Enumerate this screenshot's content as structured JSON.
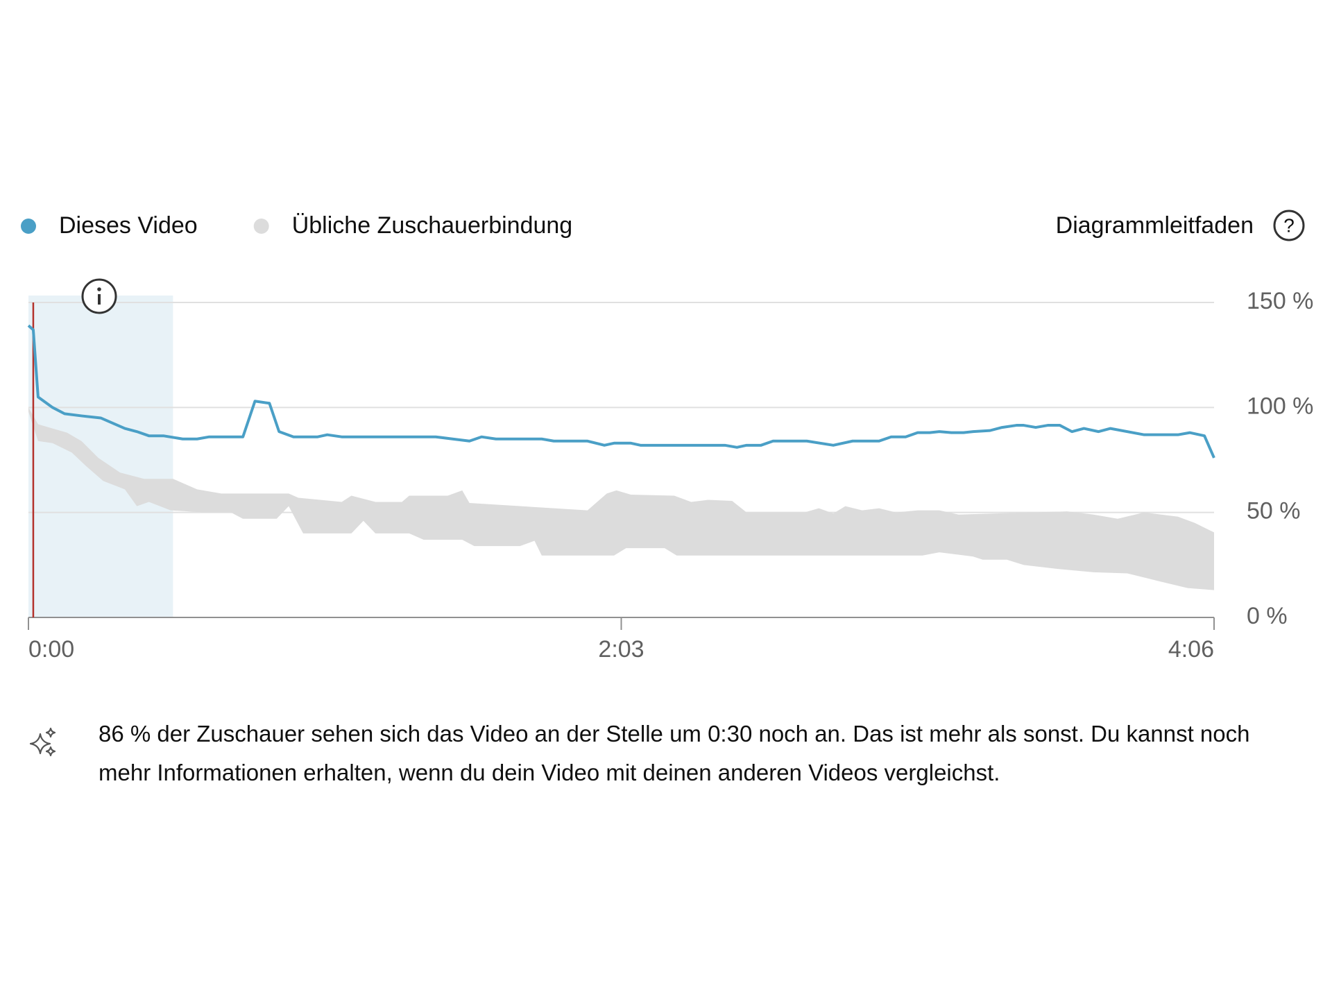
{
  "chart_data": {
    "type": "line",
    "xlim": [
      0,
      246
    ],
    "xticks": [
      {
        "value": 0,
        "label": "0:00"
      },
      {
        "value": 123,
        "label": "2:03"
      },
      {
        "value": 246,
        "label": "4:06"
      }
    ],
    "ylim": [
      0,
      150
    ],
    "yticks": [
      {
        "value": 0,
        "label": "0 %"
      },
      {
        "value": 50,
        "label": "50 %"
      },
      {
        "value": 100,
        "label": "100 %"
      },
      {
        "value": 150,
        "label": "150 %"
      }
    ],
    "grid": true,
    "highlight": {
      "x": [
        0,
        30
      ],
      "color": "#e8f2f7"
    },
    "playhead": {
      "x": 1,
      "color": "#b3322c"
    },
    "legend_action": "Diagrammleitfaden",
    "insight": "86 % der Zuschauer sehen sich das Video an der Stelle um 0:30 noch an. Das ist mehr als sonst. Du kannst noch mehr Informationen erhalten, wenn du dein Video mit deinen anderen Videos vergleichst.",
    "series": [
      {
        "name": "Dieses Video",
        "color": "#4a9fc6",
        "x": [
          0,
          1,
          2,
          5,
          7.5,
          11,
          15,
          20,
          22.5,
          25,
          28,
          32,
          35,
          37.5,
          44.5,
          47,
          50,
          52,
          55,
          60,
          62,
          65,
          84.5,
          88,
          91.5,
          94,
          97,
          106.5,
          109,
          116,
          119.5,
          121.5,
          125,
          127,
          144.5,
          147,
          149,
          152,
          154.5,
          161.5,
          167,
          171,
          176.5,
          179,
          182,
          184.5,
          187,
          189,
          191.5,
          194,
          196,
          199.5,
          202,
          205,
          206.5,
          209,
          211.5,
          214,
          216.5,
          219,
          222,
          224.5,
          231.5,
          238.5,
          241,
          244,
          246
        ],
        "values": [
          139,
          137,
          105,
          100,
          97,
          96,
          95,
          90,
          88.5,
          86.5,
          86.5,
          85,
          85,
          86,
          86,
          103,
          102,
          88.5,
          86,
          86,
          87,
          86,
          86,
          85,
          84,
          86,
          85,
          85,
          84,
          84,
          82,
          83,
          83,
          82,
          82,
          81,
          82,
          82,
          84,
          84,
          82,
          84,
          84,
          86,
          86,
          88,
          88,
          88.5,
          88,
          88,
          88.5,
          89,
          90.5,
          91.5,
          91.5,
          90.5,
          91.5,
          91.5,
          88.5,
          90,
          88.5,
          90,
          87,
          87,
          88,
          86.5,
          76
        ]
      },
      {
        "name": "Übliche Zuschauerbindung",
        "color": "#dcdcdc",
        "upper": {
          "x": [
            0,
            2,
            5,
            8,
            11,
            14.5,
            19,
            24,
            30,
            35,
            40,
            44,
            54,
            56,
            65,
            67,
            72,
            77.5,
            79,
            87,
            90,
            91.5,
            116,
            120,
            122,
            125,
            134,
            137.5,
            141,
            146,
            149,
            161,
            164,
            167,
            169.5,
            173,
            176.5,
            180,
            184.5,
            189,
            193,
            215.5,
            221,
            226,
            231.5,
            238.5,
            242,
            246
          ],
          "values": [
            100,
            92,
            90,
            88,
            84,
            76,
            69,
            66,
            66,
            61,
            59,
            59,
            59,
            57,
            55,
            58,
            55,
            55,
            58,
            58,
            60.5,
            54.5,
            51,
            59,
            60.5,
            58.5,
            58,
            55,
            56,
            55.5,
            50,
            50,
            52,
            49.5,
            53,
            51,
            52,
            50,
            51,
            51,
            49,
            50.5,
            49,
            47,
            50,
            48,
            45,
            40.5
          ]
        },
        "lower": {
          "x": [
            0,
            2,
            5,
            9,
            12,
            15.5,
            20,
            22.5,
            25,
            29.5,
            36.5,
            42,
            44.5,
            51.5,
            54,
            57,
            67,
            69.5,
            72,
            79,
            82,
            90,
            92.5,
            102,
            105,
            106.5,
            121.5,
            124,
            132,
            134.5,
            185.5,
            189,
            196,
            198,
            203,
            206.5,
            214,
            221,
            228,
            235,
            240.5,
            246
          ],
          "values": [
            98,
            84,
            83,
            78.5,
            72,
            65,
            61,
            53,
            55,
            51,
            50,
            50,
            47,
            47,
            53,
            40,
            40,
            46,
            40,
            40,
            37,
            37,
            34,
            34,
            36.5,
            29.5,
            29.5,
            33,
            33,
            29.5,
            29.5,
            31,
            29,
            27.5,
            27.5,
            25,
            23,
            21.5,
            21,
            17,
            14,
            13
          ]
        }
      }
    ]
  }
}
